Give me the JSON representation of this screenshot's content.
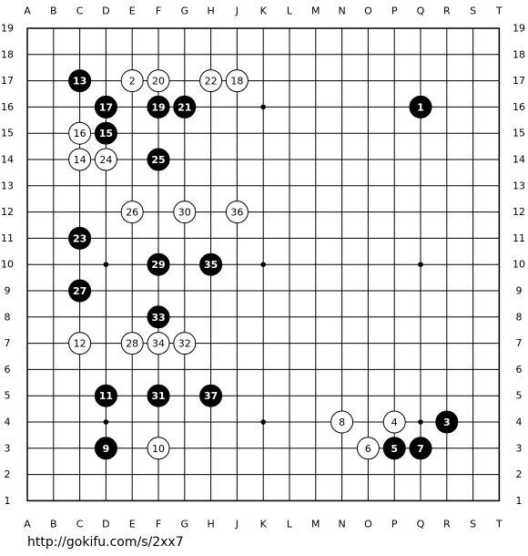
{
  "board": {
    "columns": [
      "A",
      "B",
      "C",
      "D",
      "E",
      "F",
      "G",
      "H",
      "J",
      "K",
      "L",
      "M",
      "N",
      "O",
      "P",
      "Q",
      "R",
      "S",
      "T"
    ],
    "rows": [
      19,
      18,
      17,
      16,
      15,
      14,
      13,
      12,
      11,
      10,
      9,
      8,
      7,
      6,
      5,
      4,
      3,
      2,
      1
    ],
    "moves": [
      {
        "number": 1,
        "color": "black",
        "col": "Q",
        "row": 16
      },
      {
        "number": 2,
        "color": "white",
        "col": "E",
        "row": 17
      },
      {
        "number": 3,
        "color": "black",
        "col": "R",
        "row": 4
      },
      {
        "number": 4,
        "color": "white",
        "col": "P",
        "row": 4
      },
      {
        "number": 5,
        "color": "black",
        "col": "P",
        "row": 3
      },
      {
        "number": 6,
        "color": "white",
        "col": "O",
        "row": 3
      },
      {
        "number": 7,
        "color": "black",
        "col": "Q",
        "row": 3
      },
      {
        "number": 8,
        "color": "white",
        "col": "N",
        "row": 4
      },
      {
        "number": 9,
        "color": "black",
        "col": "D",
        "row": 3
      },
      {
        "number": 10,
        "color": "white",
        "col": "F",
        "row": 3
      },
      {
        "number": 11,
        "color": "black",
        "col": "D",
        "row": 5
      },
      {
        "number": 12,
        "color": "white",
        "col": "C",
        "row": 7
      },
      {
        "number": 13,
        "color": "black",
        "col": "C",
        "row": 17
      },
      {
        "number": 14,
        "color": "white",
        "col": "C",
        "row": 14
      },
      {
        "number": 15,
        "color": "black",
        "col": "D",
        "row": 15
      },
      {
        "number": 16,
        "color": "white",
        "col": "C",
        "row": 15
      },
      {
        "number": 17,
        "color": "black",
        "col": "D",
        "row": 16
      },
      {
        "number": 18,
        "color": "white",
        "col": "J",
        "row": 17
      },
      {
        "number": 19,
        "color": "black",
        "col": "F",
        "row": 16
      },
      {
        "number": 20,
        "color": "white",
        "col": "F",
        "row": 17
      },
      {
        "number": 21,
        "color": "black",
        "col": "G",
        "row": 16
      },
      {
        "number": 22,
        "color": "white",
        "col": "H",
        "row": 17
      },
      {
        "number": 23,
        "color": "black",
        "col": "C",
        "row": 11
      },
      {
        "number": 24,
        "color": "white",
        "col": "D",
        "row": 14
      },
      {
        "number": 25,
        "color": "black",
        "col": "F",
        "row": 14
      },
      {
        "number": 26,
        "color": "white",
        "col": "E",
        "row": 12
      },
      {
        "number": 27,
        "color": "black",
        "col": "C",
        "row": 9
      },
      {
        "number": 28,
        "color": "white",
        "col": "E",
        "row": 7
      },
      {
        "number": 29,
        "color": "black",
        "col": "F",
        "row": 10
      },
      {
        "number": 30,
        "color": "white",
        "col": "G",
        "row": 12
      },
      {
        "number": 31,
        "color": "black",
        "col": "F",
        "row": 5
      },
      {
        "number": 32,
        "color": "white",
        "col": "G",
        "row": 7
      },
      {
        "number": 33,
        "color": "black",
        "col": "F",
        "row": 8
      },
      {
        "number": 34,
        "color": "white",
        "col": "F",
        "row": 7
      },
      {
        "number": 35,
        "color": "black",
        "col": "H",
        "row": 10
      },
      {
        "number": 36,
        "color": "white",
        "col": "J",
        "row": 12
      },
      {
        "number": 37,
        "color": "black",
        "col": "H",
        "row": 5
      }
    ]
  },
  "footer": {
    "url": "http://gokifu.com/s/2xx7"
  }
}
